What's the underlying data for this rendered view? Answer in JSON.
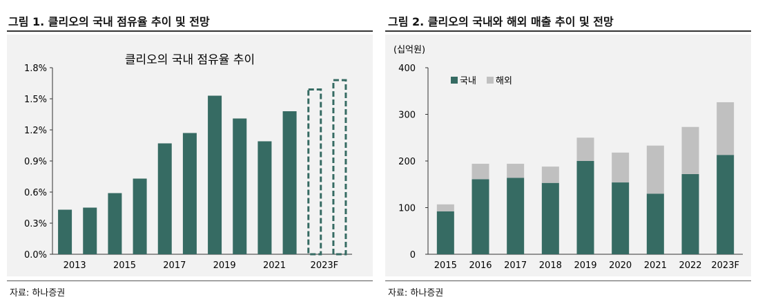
{
  "figure1": {
    "title": "그림 1. 클리오의 국내 점유율 추이 및 전망",
    "source": "자료: 하나증권"
  },
  "figure2": {
    "title": "그림 2. 클리오의 국내와 해외 매출 추이 및 전망",
    "source": "자료: 하나증권"
  },
  "colors": {
    "domestic": "#366b63",
    "overseas": "#c0c0c0"
  },
  "chart_data": [
    {
      "type": "bar",
      "title": "클리오의 국내 점유율 추이",
      "categories": [
        "2013",
        "2014",
        "2015",
        "2016",
        "2017",
        "2018",
        "2019",
        "2020",
        "2021",
        "2022",
        "2023F",
        "2024F"
      ],
      "tick_labels": [
        "2013",
        "2015",
        "2017",
        "2019",
        "2021",
        "2023F"
      ],
      "values": [
        0.43,
        0.45,
        0.59,
        0.73,
        1.07,
        1.17,
        1.53,
        1.31,
        1.09,
        1.38,
        1.59,
        1.68
      ],
      "forecast_style": "dashed outline for last two bars",
      "ylim": [
        0,
        1.8
      ],
      "yticks": [
        "0.0%",
        "0.3%",
        "0.6%",
        "0.9%",
        "1.2%",
        "1.5%",
        "1.8%"
      ],
      "grid": false
    },
    {
      "type": "bar",
      "stacked": true,
      "ylabel": "(십억원)",
      "categories": [
        "2015",
        "2016",
        "2017",
        "2018",
        "2019",
        "2020",
        "2021",
        "2022",
        "2023F"
      ],
      "series": [
        {
          "name": "국내",
          "values": [
            92,
            161,
            164,
            153,
            200,
            154,
            130,
            172,
            213
          ]
        },
        {
          "name": "해외",
          "values": [
            15,
            33,
            30,
            35,
            50,
            64,
            103,
            101,
            113
          ]
        }
      ],
      "ylim": [
        0,
        400
      ],
      "yticks": [
        "0",
        "100",
        "200",
        "300",
        "400"
      ],
      "legend": "top-left",
      "grid": false
    }
  ]
}
